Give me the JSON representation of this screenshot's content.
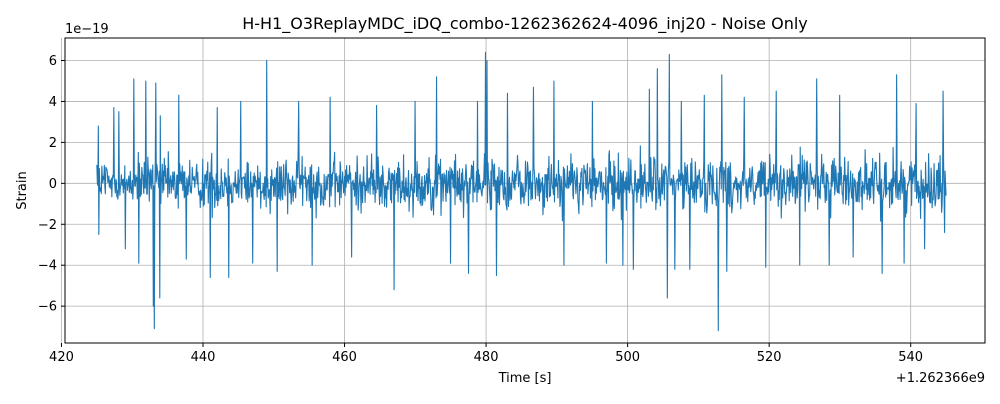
{
  "chart_data": {
    "type": "line",
    "title": "H-H1_O3ReplayMDC_iDQ_combo-1262362624-4096_inj20 - Noise Only",
    "xlabel": "Time [s]",
    "ylabel": "Strain",
    "x_offset_label": "+1.262366e9",
    "y_scale_label": "1e−19",
    "xlim": [
      420.5,
      550.5
    ],
    "ylim": [
      -7.8,
      7.1
    ],
    "x_ticks": [
      420,
      440,
      460,
      480,
      500,
      520,
      540
    ],
    "x_tick_labels": [
      "420",
      "440",
      "460",
      "480",
      "500",
      "520",
      "540"
    ],
    "y_ticks": [
      -6,
      -4,
      -2,
      0,
      2,
      4,
      6
    ],
    "y_tick_labels": [
      "−6",
      "−4",
      "−2",
      "0",
      "2",
      "4",
      "6"
    ],
    "grid": true,
    "line_color": "#1f77b4",
    "series": [
      {
        "x_range": [
          425.0,
          545.0
        ],
        "typical_band": [
          -2.0,
          2.0
        ],
        "peaks": [
          {
            "x": 425.2,
            "y": 2.8
          },
          {
            "x": 425.3,
            "y": -2.5
          },
          {
            "x": 427.4,
            "y": 3.7
          },
          {
            "x": 428.1,
            "y": 3.5
          },
          {
            "x": 429.0,
            "y": -3.2
          },
          {
            "x": 430.2,
            "y": 5.1
          },
          {
            "x": 430.9,
            "y": -3.9
          },
          {
            "x": 431.9,
            "y": 5.0
          },
          {
            "x": 433.0,
            "y": -6.0
          },
          {
            "x": 433.1,
            "y": -7.1
          },
          {
            "x": 433.3,
            "y": 4.9
          },
          {
            "x": 433.9,
            "y": -5.6
          },
          {
            "x": 434.0,
            "y": 3.3
          },
          {
            "x": 436.6,
            "y": 4.3
          },
          {
            "x": 437.6,
            "y": -3.7
          },
          {
            "x": 441.0,
            "y": -4.6
          },
          {
            "x": 442.0,
            "y": 3.7
          },
          {
            "x": 443.6,
            "y": -4.6
          },
          {
            "x": 445.3,
            "y": 4.0
          },
          {
            "x": 447.0,
            "y": -3.9
          },
          {
            "x": 449.0,
            "y": 6.0
          },
          {
            "x": 450.5,
            "y": -4.3
          },
          {
            "x": 453.5,
            "y": 4.0
          },
          {
            "x": 455.4,
            "y": -4.0
          },
          {
            "x": 458.0,
            "y": 4.2
          },
          {
            "x": 461.0,
            "y": -3.6
          },
          {
            "x": 464.5,
            "y": 3.8
          },
          {
            "x": 467.0,
            "y": -5.2
          },
          {
            "x": 470.0,
            "y": 4.0
          },
          {
            "x": 473.0,
            "y": 5.2
          },
          {
            "x": 475.0,
            "y": -3.9
          },
          {
            "x": 477.5,
            "y": -4.4
          },
          {
            "x": 478.8,
            "y": 4.0
          },
          {
            "x": 479.9,
            "y": 6.4
          },
          {
            "x": 480.1,
            "y": 6.0
          },
          {
            "x": 481.5,
            "y": -4.5
          },
          {
            "x": 483.0,
            "y": 4.4
          },
          {
            "x": 486.7,
            "y": 4.7
          },
          {
            "x": 489.6,
            "y": 5.0
          },
          {
            "x": 491.0,
            "y": -4.0
          },
          {
            "x": 495.0,
            "y": 4.0
          },
          {
            "x": 497.0,
            "y": -3.9
          },
          {
            "x": 499.3,
            "y": -4.0
          },
          {
            "x": 500.8,
            "y": -4.2
          },
          {
            "x": 503.1,
            "y": 4.6
          },
          {
            "x": 504.2,
            "y": 5.6
          },
          {
            "x": 505.6,
            "y": -5.6
          },
          {
            "x": 505.9,
            "y": 6.3
          },
          {
            "x": 506.7,
            "y": -4.2
          },
          {
            "x": 507.6,
            "y": 4.0
          },
          {
            "x": 508.8,
            "y": -4.2
          },
          {
            "x": 510.8,
            "y": 4.3
          },
          {
            "x": 512.8,
            "y": -7.2
          },
          {
            "x": 513.3,
            "y": 5.3
          },
          {
            "x": 514.0,
            "y": -4.3
          },
          {
            "x": 516.5,
            "y": 4.2
          },
          {
            "x": 519.5,
            "y": -4.1
          },
          {
            "x": 521.0,
            "y": 4.5
          },
          {
            "x": 524.3,
            "y": -4.0
          },
          {
            "x": 526.7,
            "y": 5.1
          },
          {
            "x": 528.5,
            "y": -4.0
          },
          {
            "x": 530.0,
            "y": 4.3
          },
          {
            "x": 531.9,
            "y": -3.6
          },
          {
            "x": 536.0,
            "y": -4.4
          },
          {
            "x": 538.0,
            "y": 5.3
          },
          {
            "x": 539.1,
            "y": -3.9
          },
          {
            "x": 540.8,
            "y": 3.9
          },
          {
            "x": 542.0,
            "y": -3.2
          },
          {
            "x": 544.6,
            "y": 4.5
          },
          {
            "x": 544.8,
            "y": -2.4
          }
        ]
      }
    ]
  }
}
